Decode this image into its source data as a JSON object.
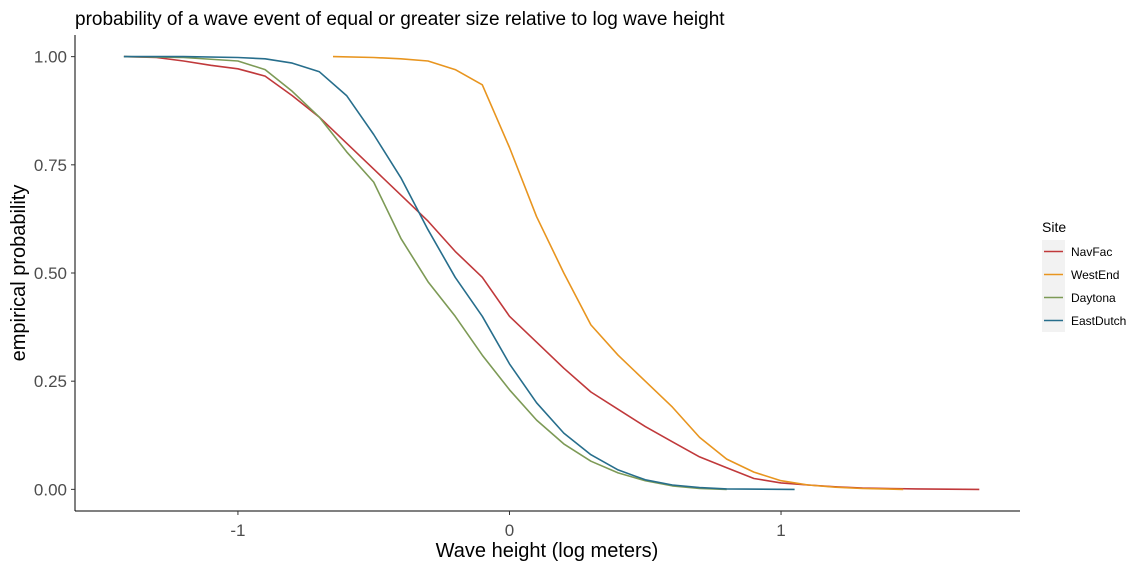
{
  "chart_data": {
    "type": "line",
    "title": "probability of a wave event of equal or greater size relative to log wave height",
    "xlabel": "Wave height (log meters)",
    "ylabel": "empirical probability",
    "xlim": [
      -1.6,
      1.88
    ],
    "ylim": [
      -0.05,
      1.05
    ],
    "x_ticks": [
      -1,
      0,
      1
    ],
    "x_tick_labels": [
      "-1",
      "0",
      "1"
    ],
    "y_ticks": [
      0,
      0.25,
      0.5,
      0.75,
      1
    ],
    "y_tick_labels": [
      "0.00",
      "0.25",
      "0.50",
      "0.75",
      "1.00"
    ],
    "grid": false,
    "legend": {
      "title": "Site",
      "position": "right"
    },
    "series": [
      {
        "name": "NavFac",
        "color": "#c0393b",
        "points": [
          [
            -1.42,
            1.0
          ],
          [
            -1.3,
            0.998
          ],
          [
            -1.2,
            0.99
          ],
          [
            -1.1,
            0.98
          ],
          [
            -1.0,
            0.972
          ],
          [
            -0.9,
            0.955
          ],
          [
            -0.8,
            0.91
          ],
          [
            -0.7,
            0.86
          ],
          [
            -0.6,
            0.8
          ],
          [
            -0.5,
            0.74
          ],
          [
            -0.4,
            0.68
          ],
          [
            -0.3,
            0.62
          ],
          [
            -0.2,
            0.55
          ],
          [
            -0.1,
            0.49
          ],
          [
            0.0,
            0.4
          ],
          [
            0.1,
            0.34
          ],
          [
            0.2,
            0.28
          ],
          [
            0.3,
            0.225
          ],
          [
            0.4,
            0.185
          ],
          [
            0.5,
            0.145
          ],
          [
            0.6,
            0.11
          ],
          [
            0.7,
            0.075
          ],
          [
            0.8,
            0.05
          ],
          [
            0.9,
            0.025
          ],
          [
            1.0,
            0.015
          ],
          [
            1.1,
            0.01
          ],
          [
            1.2,
            0.006
          ],
          [
            1.3,
            0.003
          ],
          [
            1.5,
            0.001
          ],
          [
            1.73,
            0.0
          ]
        ]
      },
      {
        "name": "WestEnd",
        "color": "#e8951f",
        "points": [
          [
            -0.65,
            1.0
          ],
          [
            -0.5,
            0.998
          ],
          [
            -0.4,
            0.995
          ],
          [
            -0.3,
            0.99
          ],
          [
            -0.2,
            0.97
          ],
          [
            -0.1,
            0.935
          ],
          [
            0.0,
            0.79
          ],
          [
            0.1,
            0.63
          ],
          [
            0.2,
            0.5
          ],
          [
            0.3,
            0.38
          ],
          [
            0.4,
            0.31
          ],
          [
            0.5,
            0.25
          ],
          [
            0.6,
            0.19
          ],
          [
            0.7,
            0.12
          ],
          [
            0.8,
            0.07
          ],
          [
            0.9,
            0.04
          ],
          [
            1.0,
            0.02
          ],
          [
            1.1,
            0.01
          ],
          [
            1.2,
            0.005
          ],
          [
            1.3,
            0.002
          ],
          [
            1.45,
            0.0
          ]
        ]
      },
      {
        "name": "Daytona",
        "color": "#7d9a56",
        "points": [
          [
            -1.42,
            1.0
          ],
          [
            -1.2,
            0.998
          ],
          [
            -1.0,
            0.99
          ],
          [
            -0.9,
            0.97
          ],
          [
            -0.8,
            0.92
          ],
          [
            -0.7,
            0.86
          ],
          [
            -0.6,
            0.78
          ],
          [
            -0.5,
            0.71
          ],
          [
            -0.4,
            0.58
          ],
          [
            -0.3,
            0.48
          ],
          [
            -0.2,
            0.4
          ],
          [
            -0.1,
            0.31
          ],
          [
            0.0,
            0.23
          ],
          [
            0.1,
            0.16
          ],
          [
            0.2,
            0.105
          ],
          [
            0.3,
            0.065
          ],
          [
            0.4,
            0.038
          ],
          [
            0.5,
            0.02
          ],
          [
            0.6,
            0.008
          ],
          [
            0.7,
            0.002
          ],
          [
            0.8,
            0.0
          ]
        ]
      },
      {
        "name": "EastDutch",
        "color": "#276e8c",
        "points": [
          [
            -1.42,
            1.0
          ],
          [
            -1.2,
            1.0
          ],
          [
            -1.0,
            0.998
          ],
          [
            -0.9,
            0.995
          ],
          [
            -0.8,
            0.985
          ],
          [
            -0.7,
            0.965
          ],
          [
            -0.6,
            0.91
          ],
          [
            -0.5,
            0.82
          ],
          [
            -0.4,
            0.72
          ],
          [
            -0.3,
            0.6
          ],
          [
            -0.2,
            0.49
          ],
          [
            -0.1,
            0.4
          ],
          [
            0.0,
            0.29
          ],
          [
            0.1,
            0.2
          ],
          [
            0.2,
            0.13
          ],
          [
            0.3,
            0.08
          ],
          [
            0.4,
            0.045
          ],
          [
            0.5,
            0.022
          ],
          [
            0.6,
            0.01
          ],
          [
            0.7,
            0.004
          ],
          [
            0.8,
            0.001
          ],
          [
            1.05,
            0.0
          ]
        ]
      }
    ]
  }
}
